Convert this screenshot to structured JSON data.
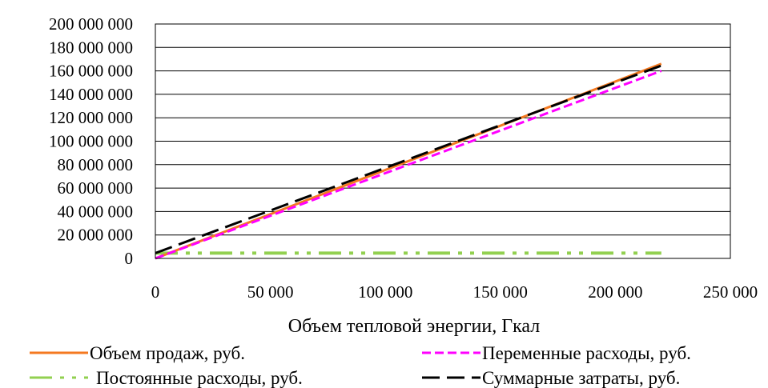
{
  "chart_data": {
    "type": "line",
    "xlabel": "Объем тепловой энергии, Гкал",
    "ylabel": "",
    "xlim": [
      0,
      250000
    ],
    "ylim": [
      0,
      200000000
    ],
    "x_ticks": [
      {
        "value": 0,
        "label": "0"
      },
      {
        "value": 50000,
        "label": "50 000"
      },
      {
        "value": 100000,
        "label": "100 000"
      },
      {
        "value": 150000,
        "label": "150 000"
      },
      {
        "value": 200000,
        "label": "200 000"
      },
      {
        "value": 250000,
        "label": "250 000"
      }
    ],
    "y_ticks": [
      {
        "value": 0,
        "label": "0"
      },
      {
        "value": 20000000,
        "label": "20 000 000"
      },
      {
        "value": 40000000,
        "label": "40 000 000"
      },
      {
        "value": 60000000,
        "label": "60 000 000"
      },
      {
        "value": 80000000,
        "label": "80 000 000"
      },
      {
        "value": 100000000,
        "label": "100 000 000"
      },
      {
        "value": 120000000,
        "label": "120 000 000"
      },
      {
        "value": 140000000,
        "label": "140 000 000"
      },
      {
        "value": 160000000,
        "label": "160 000 000"
      },
      {
        "value": 180000000,
        "label": "180 000 000"
      },
      {
        "value": 200000000,
        "label": "200 000 000"
      }
    ],
    "grid": "horizontal",
    "legend_position": "bottom",
    "series": [
      {
        "key": "sales",
        "name": "Объем продаж, руб.",
        "color": "#F47920",
        "style": "solid",
        "x": [
          0,
          220000
        ],
        "y": [
          0,
          166000000
        ]
      },
      {
        "key": "variable",
        "name": "Переменные расходы, руб.",
        "color": "#FF00FF",
        "style": "dash",
        "x": [
          0,
          220000
        ],
        "y": [
          0,
          160000000
        ]
      },
      {
        "key": "fixed",
        "name": "Постоянные расходы, руб.",
        "color": "#92D050",
        "style": "dash-dot-dot",
        "x": [
          0,
          220000
        ],
        "y": [
          4500000,
          4500000
        ]
      },
      {
        "key": "total",
        "name": "Суммарные затраты, руб.",
        "color": "#000000",
        "style": "long-dash",
        "x": [
          0,
          220000
        ],
        "y": [
          4500000,
          164500000
        ]
      }
    ]
  }
}
